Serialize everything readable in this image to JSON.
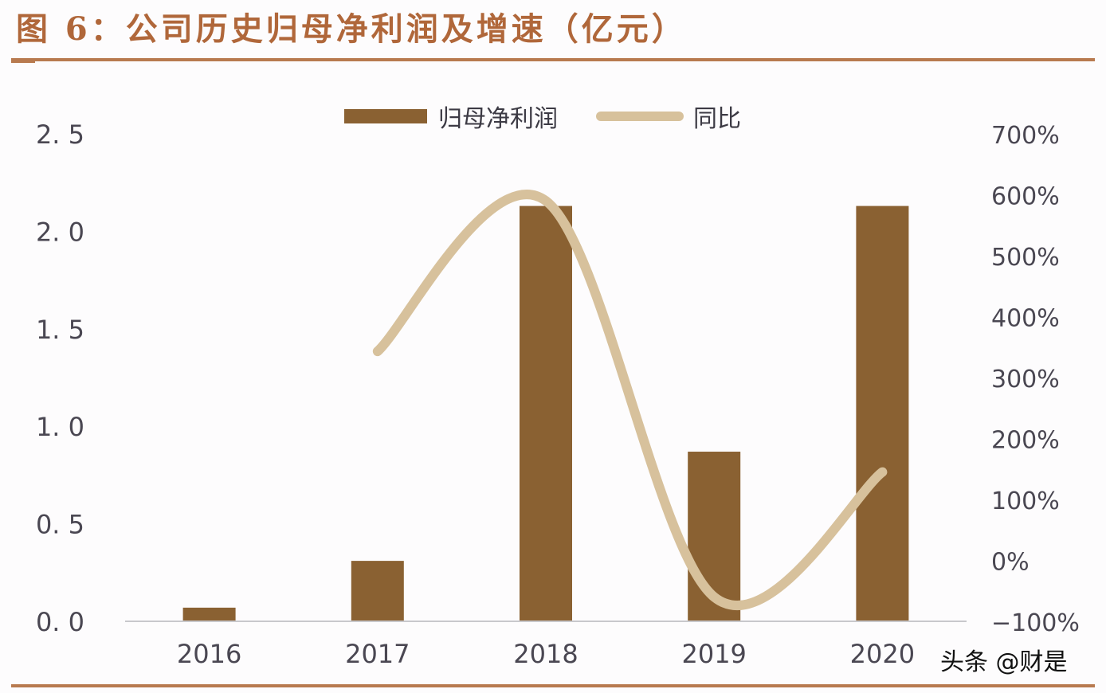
{
  "header": {
    "title": "图 6：公司历史归母净利润及增速（亿元）"
  },
  "legend": {
    "bar_label": "归母净利润",
    "line_label": "同比"
  },
  "watermark": "头条 @财是",
  "colors": {
    "title": "#b0673a",
    "rule": "#b87a4f",
    "bar": "#8a6132",
    "line": "#d7c19c",
    "axis_text": "#4a4752",
    "baseline": "#c8c8cc"
  },
  "chart_data": {
    "type": "bar",
    "title": "图 6：公司历史归母净利润及增速（亿元）",
    "xlabel": "",
    "ylabel": "亿元",
    "y2label": "同比",
    "categories": [
      "2016",
      "2017",
      "2018",
      "2019",
      "2020"
    ],
    "series": [
      {
        "name": "归母净利润",
        "type": "bar",
        "axis": "left",
        "values": [
          0.07,
          0.31,
          2.13,
          0.87,
          2.13
        ]
      },
      {
        "name": "同比",
        "type": "line",
        "axis": "right",
        "smooth": true,
        "values": [
          null,
          343,
          590,
          -60,
          145
        ]
      }
    ],
    "ylim": [
      0.0,
      2.5
    ],
    "y_ticks": [
      "0.0",
      "0.5",
      "1.0",
      "1.5",
      "2.0",
      "2.5"
    ],
    "y2lim": [
      -100,
      700
    ],
    "y2_ticks": [
      "-100%",
      "0%",
      "100%",
      "200%",
      "300%",
      "400%",
      "500%",
      "600%",
      "700%"
    ],
    "grid": false,
    "legend_position": "top"
  }
}
